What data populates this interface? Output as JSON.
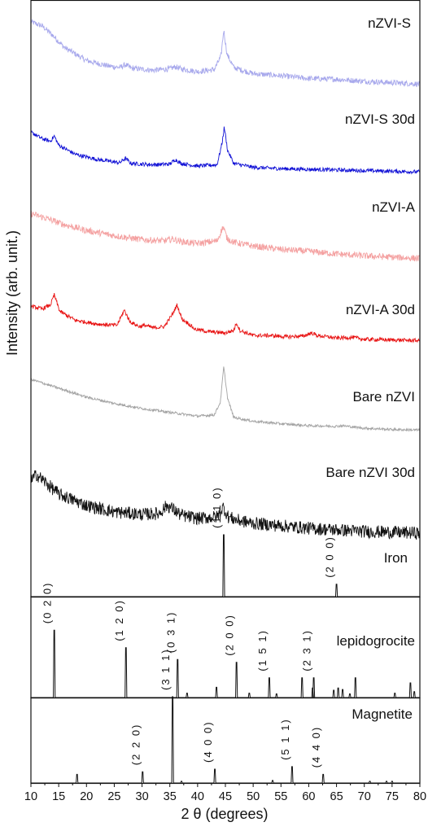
{
  "chart_data": {
    "type": "line",
    "xlabel": "2 θ (degrees)",
    "ylabel": "Intensity (arb. unit.)",
    "xlim": [
      10,
      80
    ],
    "xticks": [
      10,
      15,
      20,
      25,
      30,
      35,
      40,
      45,
      50,
      55,
      60,
      65,
      70,
      75,
      80
    ],
    "series": [
      {
        "name": "nZVI-S",
        "color": "#a7a8ec",
        "points": [
          [
            10,
            0.92
          ],
          [
            12,
            0.86
          ],
          [
            14,
            0.72
          ],
          [
            16,
            0.55
          ],
          [
            20,
            0.36
          ],
          [
            24,
            0.28
          ],
          [
            26,
            0.26
          ],
          [
            27,
            0.3
          ],
          [
            28,
            0.25
          ],
          [
            32,
            0.22
          ],
          [
            35,
            0.24
          ],
          [
            36,
            0.27
          ],
          [
            37,
            0.24
          ],
          [
            40,
            0.2
          ],
          [
            43,
            0.23
          ],
          [
            44.2,
            0.42
          ],
          [
            44.7,
            0.8
          ],
          [
            45.3,
            0.45
          ],
          [
            46.5,
            0.26
          ],
          [
            50,
            0.17
          ],
          [
            55,
            0.14
          ],
          [
            60,
            0.1
          ],
          [
            65,
            0.09
          ],
          [
            70,
            0.06
          ],
          [
            75,
            0.04
          ],
          [
            80,
            0.02
          ]
        ],
        "peaks": [],
        "noise": 0.04
      },
      {
        "name": "nZVI-S 30d",
        "color": "#1212d6",
        "points": [
          [
            10,
            0.62
          ],
          [
            12,
            0.52
          ],
          [
            13.5,
            0.48
          ],
          [
            14.2,
            0.56
          ],
          [
            15,
            0.42
          ],
          [
            18,
            0.28
          ],
          [
            22,
            0.2
          ],
          [
            26,
            0.15
          ],
          [
            27,
            0.22
          ],
          [
            28,
            0.14
          ],
          [
            32,
            0.12
          ],
          [
            35,
            0.13
          ],
          [
            36,
            0.2
          ],
          [
            37,
            0.14
          ],
          [
            40,
            0.1
          ],
          [
            43.5,
            0.12
          ],
          [
            44.4,
            0.45
          ],
          [
            44.8,
            0.7
          ],
          [
            45.4,
            0.34
          ],
          [
            46.5,
            0.14
          ],
          [
            50,
            0.08
          ],
          [
            55,
            0.06
          ],
          [
            60,
            0.05
          ],
          [
            65,
            0.04
          ],
          [
            70,
            0.03
          ],
          [
            75,
            0.02
          ],
          [
            80,
            0.01
          ]
        ],
        "peaks": [],
        "noise": 0.03
      },
      {
        "name": "nZVI-A",
        "color": "#f4a1a1",
        "points": [
          [
            10,
            0.72
          ],
          [
            13,
            0.64
          ],
          [
            16,
            0.55
          ],
          [
            20,
            0.46
          ],
          [
            25,
            0.38
          ],
          [
            30,
            0.32
          ],
          [
            34,
            0.3
          ],
          [
            35.5,
            0.33
          ],
          [
            37,
            0.29
          ],
          [
            40,
            0.26
          ],
          [
            43.5,
            0.3
          ],
          [
            44.6,
            0.52
          ],
          [
            45.3,
            0.34
          ],
          [
            46.5,
            0.28
          ],
          [
            50,
            0.22
          ],
          [
            55,
            0.17
          ],
          [
            60,
            0.14
          ],
          [
            65,
            0.1
          ],
          [
            70,
            0.07
          ],
          [
            75,
            0.05
          ],
          [
            80,
            0.03
          ]
        ],
        "peaks": [],
        "noise": 0.05
      },
      {
        "name": "nZVI-A 30d",
        "color": "#e81212",
        "points": [
          [
            10,
            0.56
          ],
          [
            12,
            0.52
          ],
          [
            13.5,
            0.58
          ],
          [
            14.2,
            0.74
          ],
          [
            15.2,
            0.48
          ],
          [
            18,
            0.34
          ],
          [
            22,
            0.28
          ],
          [
            25.5,
            0.26
          ],
          [
            26.8,
            0.5
          ],
          [
            27.8,
            0.32
          ],
          [
            29.5,
            0.24
          ],
          [
            30.5,
            0.26
          ],
          [
            32,
            0.22
          ],
          [
            34,
            0.24
          ],
          [
            35.5,
            0.44
          ],
          [
            36.3,
            0.58
          ],
          [
            37.2,
            0.36
          ],
          [
            38.2,
            0.3
          ],
          [
            39.5,
            0.2
          ],
          [
            42,
            0.16
          ],
          [
            45,
            0.14
          ],
          [
            46.5,
            0.18
          ],
          [
            47,
            0.3
          ],
          [
            47.6,
            0.18
          ],
          [
            50,
            0.1
          ],
          [
            53,
            0.1
          ],
          [
            56,
            0.08
          ],
          [
            59,
            0.09
          ],
          [
            60.5,
            0.14
          ],
          [
            61.5,
            0.1
          ],
          [
            65,
            0.06
          ],
          [
            68,
            0.07
          ],
          [
            70,
            0.04
          ],
          [
            75,
            0.03
          ],
          [
            80,
            0.02
          ]
        ],
        "peaks": [],
        "noise": 0.03
      },
      {
        "name": "Bare nZVI",
        "color": "#a3a3a3",
        "points": [
          [
            10,
            0.82
          ],
          [
            15,
            0.68
          ],
          [
            20,
            0.54
          ],
          [
            25,
            0.44
          ],
          [
            30,
            0.36
          ],
          [
            35,
            0.3
          ],
          [
            40,
            0.24
          ],
          [
            43,
            0.26
          ],
          [
            44.1,
            0.46
          ],
          [
            44.7,
            1.02
          ],
          [
            45.4,
            0.52
          ],
          [
            46.5,
            0.22
          ],
          [
            50,
            0.16
          ],
          [
            55,
            0.12
          ],
          [
            60,
            0.09
          ],
          [
            65,
            0.08
          ],
          [
            66,
            0.09
          ],
          [
            70,
            0.05
          ],
          [
            75,
            0.03
          ],
          [
            80,
            0.02
          ]
        ],
        "peaks": [],
        "noise": 0.02
      },
      {
        "name": "Bare nZVI 30d",
        "color": "#111111",
        "points": [
          [
            10,
            0.66
          ],
          [
            11,
            0.74
          ],
          [
            12,
            0.68
          ],
          [
            15,
            0.5
          ],
          [
            20,
            0.36
          ],
          [
            25,
            0.28
          ],
          [
            30,
            0.25
          ],
          [
            33,
            0.26
          ],
          [
            34.5,
            0.36
          ],
          [
            35.5,
            0.32
          ],
          [
            37,
            0.24
          ],
          [
            40,
            0.2
          ],
          [
            43.5,
            0.22
          ],
          [
            44.6,
            0.34
          ],
          [
            45.5,
            0.22
          ],
          [
            47,
            0.18
          ],
          [
            50,
            0.14
          ],
          [
            55,
            0.11
          ],
          [
            60,
            0.08
          ],
          [
            65,
            0.06
          ],
          [
            70,
            0.04
          ],
          [
            75,
            0.03
          ],
          [
            80,
            0.02
          ]
        ],
        "peaks": [],
        "noise": 0.08
      },
      {
        "name": "Iron",
        "color": "#111111",
        "points": [],
        "noise": 0,
        "peaks": [
          [
            44.7,
            1.0
          ],
          [
            65.0,
            0.2
          ]
        ],
        "peak_labels": [
          [
            44.7,
            "(1 1 0)"
          ],
          [
            65.0,
            "(2 0 0)"
          ]
        ]
      },
      {
        "name": "lepidogrocite",
        "color": "#111111",
        "points": [],
        "noise": 0,
        "peaks": [
          [
            14.2,
            0.92
          ],
          [
            27.1,
            0.68
          ],
          [
            36.4,
            0.52
          ],
          [
            38.1,
            0.06
          ],
          [
            43.4,
            0.14
          ],
          [
            47.0,
            0.48
          ],
          [
            49.3,
            0.06
          ],
          [
            52.9,
            0.27
          ],
          [
            54.2,
            0.05
          ],
          [
            58.8,
            0.27
          ],
          [
            60.7,
            0.13
          ],
          [
            60.9,
            0.27
          ],
          [
            64.5,
            0.1
          ],
          [
            65.3,
            0.13
          ],
          [
            66.1,
            0.11
          ],
          [
            67.4,
            0.05
          ],
          [
            68.4,
            0.27
          ],
          [
            75.5,
            0.06
          ],
          [
            78.3,
            0.2
          ],
          [
            79.0,
            0.08
          ]
        ],
        "peak_labels": [
          [
            14.2,
            "(0 2 0)"
          ],
          [
            27.1,
            "(1 2 0)"
          ],
          [
            36.4,
            "(0 3 1)"
          ],
          [
            47.0,
            "(2 0 0)"
          ],
          [
            52.9,
            "(1 5 1)"
          ],
          [
            60.9,
            "(2 3 1)"
          ]
        ]
      },
      {
        "name": "Magnetite",
        "color": "#111111",
        "points": [],
        "noise": 0,
        "peaks": [
          [
            18.3,
            0.1
          ],
          [
            30.1,
            0.13
          ],
          [
            35.5,
            1.0
          ],
          [
            37.1,
            0.02
          ],
          [
            43.1,
            0.16
          ],
          [
            53.5,
            0.03
          ],
          [
            57.0,
            0.19
          ],
          [
            62.6,
            0.1
          ],
          [
            71.0,
            0.02
          ],
          [
            74.0,
            0.02
          ],
          [
            75.0,
            0.02
          ]
        ],
        "peak_labels": [
          [
            30.1,
            "(2 2 0)"
          ],
          [
            35.5,
            "(3 1 1)"
          ],
          [
            43.1,
            "(4 0 0)"
          ],
          [
            57.0,
            "(5 1 1)"
          ],
          [
            62.6,
            "(4 4 0)"
          ]
        ]
      }
    ],
    "grid": false,
    "legend": "inline labels at right of each trace"
  }
}
